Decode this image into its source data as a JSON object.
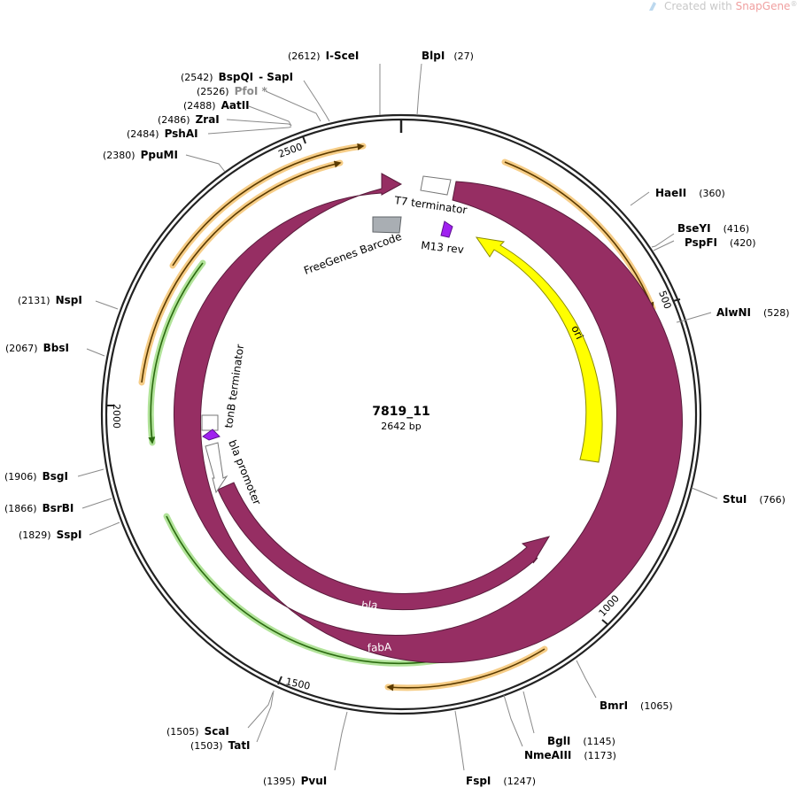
{
  "watermark": {
    "prefix": "Created with ",
    "brand": "SnapGene",
    "mark": "®"
  },
  "plasmid": {
    "name": "7819_11",
    "size_label": "2642 bp",
    "length": 2642
  },
  "ticks": [
    {
      "label": "500",
      "pos": 500
    },
    {
      "label": "1000",
      "pos": 1000
    },
    {
      "label": "1500",
      "pos": 1500
    },
    {
      "label": "2000",
      "pos": 2000
    },
    {
      "label": "2500",
      "pos": 2500
    }
  ],
  "sites": [
    {
      "name": "I-SceI",
      "pos": "(2612)"
    },
    {
      "name": "BlpI",
      "pos": "(27)"
    },
    {
      "name": "BspQI",
      "extra": "SapI",
      "pos": "(2542)"
    },
    {
      "name": "PfoI *",
      "pos": "(2526)",
      "gray": true
    },
    {
      "name": "AatII",
      "pos": "(2488)"
    },
    {
      "name": "ZraI",
      "pos": "(2486)"
    },
    {
      "name": "PshAI",
      "pos": "(2484)"
    },
    {
      "name": "PpuMI",
      "pos": "(2380)"
    },
    {
      "name": "HaeII",
      "pos": "(360)"
    },
    {
      "name": "BseYI",
      "pos": "(416)"
    },
    {
      "name": "PspFI",
      "pos": "(420)"
    },
    {
      "name": "AlwNI",
      "pos": "(528)"
    },
    {
      "name": "NspI",
      "pos": "(2131)"
    },
    {
      "name": "BbsI",
      "pos": "(2067)"
    },
    {
      "name": "StuI",
      "pos": "(766)"
    },
    {
      "name": "BsgI",
      "pos": "(1906)"
    },
    {
      "name": "BsrBI",
      "pos": "(1866)"
    },
    {
      "name": "SspI",
      "pos": "(1829)"
    },
    {
      "name": "BmrI",
      "pos": "(1065)"
    },
    {
      "name": "BglI",
      "pos": "(1145)"
    },
    {
      "name": "NmeAIII",
      "pos": "(1173)"
    },
    {
      "name": "ScaI",
      "pos": "(1505)"
    },
    {
      "name": "TatI",
      "pos": "(1503)"
    },
    {
      "name": "PvuI",
      "pos": "(1395)"
    },
    {
      "name": "FspI",
      "pos": "(1247)"
    }
  ],
  "features": [
    {
      "name": "T7 terminator",
      "kind": "terminator"
    },
    {
      "name": "M13 rev",
      "kind": "primer_bind"
    },
    {
      "name": "FreeGenes Barcode",
      "kind": "misc",
      "color": "#a9aeb3"
    },
    {
      "name": "ori",
      "kind": "rep_origin",
      "color": "#ffff00"
    },
    {
      "name": "tonB terminator",
      "kind": "terminator"
    },
    {
      "name": "bla promoter",
      "kind": "promoter"
    },
    {
      "name": "bla",
      "kind": "cds",
      "color": "#962e63"
    },
    {
      "name": "fabA",
      "kind": "cds",
      "color": "#962e63"
    }
  ],
  "colors": {
    "backbone": "#222222",
    "cds": "#962e63",
    "ori": "#ffff00",
    "primer": "#a020f0",
    "orf_orange": "#f0b050",
    "orf_green": "#7fcf5f",
    "watermark_accent": "#f0a0a0"
  }
}
